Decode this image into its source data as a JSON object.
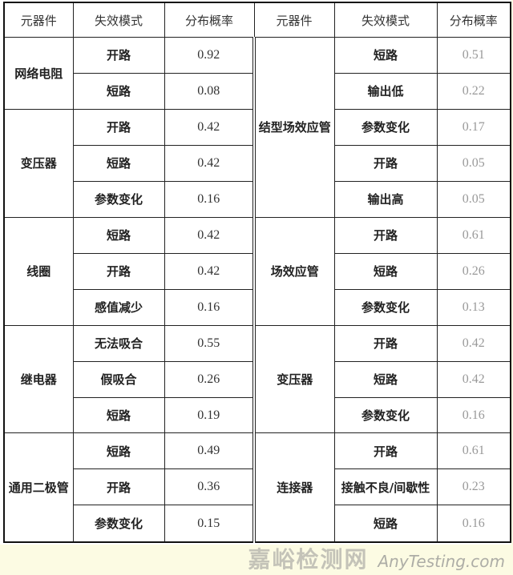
{
  "headers": [
    "元器件",
    "失效模式",
    "分布概率",
    "元器件",
    "失效模式",
    "分布概率"
  ],
  "left": [
    {
      "component": "网络电阻",
      "modes": [
        {
          "mode": "开路",
          "p": "0.92"
        },
        {
          "mode": "短路",
          "p": "0.08"
        }
      ]
    },
    {
      "component": "变压器",
      "modes": [
        {
          "mode": "开路",
          "p": "0.42"
        },
        {
          "mode": "短路",
          "p": "0.42"
        },
        {
          "mode": "参数变化",
          "p": "0.16"
        }
      ]
    },
    {
      "component": "线圈",
      "modes": [
        {
          "mode": "短路",
          "p": "0.42"
        },
        {
          "mode": "开路",
          "p": "0.42"
        },
        {
          "mode": "感值减少",
          "p": "0.16"
        }
      ]
    },
    {
      "component": "继电器",
      "modes": [
        {
          "mode": "无法吸合",
          "p": "0.55"
        },
        {
          "mode": "假吸合",
          "p": "0.26"
        },
        {
          "mode": "短路",
          "p": "0.19"
        }
      ]
    },
    {
      "component": "通用二极管",
      "modes": [
        {
          "mode": "短路",
          "p": "0.49"
        },
        {
          "mode": "开路",
          "p": "0.36"
        },
        {
          "mode": "参数变化",
          "p": "0.15"
        }
      ]
    }
  ],
  "right": [
    {
      "component": "结型场效应管",
      "modes": [
        {
          "mode": "短路",
          "p": "0.51"
        },
        {
          "mode": "输出低",
          "p": "0.22"
        },
        {
          "mode": "参数变化",
          "p": "0.17"
        },
        {
          "mode": "开路",
          "p": "0.05"
        },
        {
          "mode": "输出高",
          "p": "0.05"
        }
      ]
    },
    {
      "component": "场效应管",
      "modes": [
        {
          "mode": "开路",
          "p": "0.61"
        },
        {
          "mode": "短路",
          "p": "0.26"
        },
        {
          "mode": "参数变化",
          "p": "0.13"
        }
      ]
    },
    {
      "component": "变压器",
      "modes": [
        {
          "mode": "开路",
          "p": "0.42"
        },
        {
          "mode": "短路",
          "p": "0.42"
        },
        {
          "mode": "参数变化",
          "p": "0.16"
        }
      ]
    },
    {
      "component": "连接器",
      "modes": [
        {
          "mode": "开路",
          "p": "0.61"
        },
        {
          "mode": "接触不良/间歇性",
          "p": "0.23"
        },
        {
          "mode": "短路",
          "p": "0.16"
        }
      ]
    }
  ],
  "watermark": {
    "cn": "嘉峪检测网",
    "en": "AnyTesting.com"
  }
}
